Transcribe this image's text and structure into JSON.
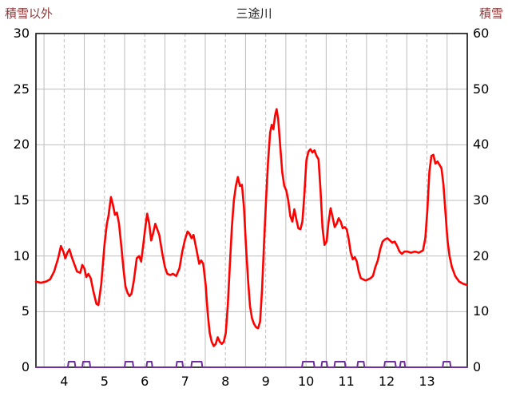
{
  "chart_data": {
    "type": "line",
    "title": "三途川",
    "legend": "none",
    "grid": true,
    "background": "#ffffff",
    "x_axis": {
      "min": 3.3,
      "max": 14.0,
      "tick_positions": [
        4,
        5,
        6,
        7,
        8,
        9,
        10,
        11,
        12,
        13
      ],
      "tick_labels": [
        "4",
        "5",
        "6",
        "7",
        "8",
        "9",
        "10",
        "11",
        "12",
        "13"
      ],
      "gridline_step": 0.5
    },
    "left_axis": {
      "title": "積雪以外",
      "min": 0,
      "max": 30,
      "ticks": [
        0,
        5,
        10,
        15,
        20,
        25,
        30
      ]
    },
    "right_axis": {
      "title": "積雪",
      "min": 0,
      "max": 60,
      "ticks": [
        0,
        10,
        20,
        30,
        40,
        50,
        60
      ]
    },
    "colors": {
      "grid": "#bdbdbd",
      "border": "#000000",
      "red_line": "#ff0000",
      "purple_line": "#7030a0",
      "axis_title_text": "#8b3a3a",
      "tick_text": "#000000"
    },
    "series": [
      {
        "name": "積雪以外",
        "slug": "other-than-snow",
        "axis": "left",
        "color": "#ff0000",
        "stroke_width": 2.6,
        "points": [
          [
            3.3,
            7.7
          ],
          [
            3.42,
            7.6
          ],
          [
            3.55,
            7.7
          ],
          [
            3.65,
            7.9
          ],
          [
            3.75,
            8.6
          ],
          [
            3.85,
            9.8
          ],
          [
            3.92,
            10.9
          ],
          [
            3.98,
            10.4
          ],
          [
            4.03,
            9.8
          ],
          [
            4.08,
            10.3
          ],
          [
            4.13,
            10.6
          ],
          [
            4.18,
            10.0
          ],
          [
            4.25,
            9.3
          ],
          [
            4.32,
            8.6
          ],
          [
            4.4,
            8.5
          ],
          [
            4.45,
            9.2
          ],
          [
            4.5,
            8.9
          ],
          [
            4.55,
            8.1
          ],
          [
            4.6,
            8.4
          ],
          [
            4.66,
            8.0
          ],
          [
            4.72,
            6.9
          ],
          [
            4.8,
            5.7
          ],
          [
            4.85,
            5.6
          ],
          [
            4.92,
            7.5
          ],
          [
            5.0,
            11.0
          ],
          [
            5.06,
            12.9
          ],
          [
            5.1,
            13.6
          ],
          [
            5.16,
            15.3
          ],
          [
            5.21,
            14.6
          ],
          [
            5.26,
            13.7
          ],
          [
            5.31,
            13.9
          ],
          [
            5.36,
            12.9
          ],
          [
            5.42,
            10.8
          ],
          [
            5.47,
            8.9
          ],
          [
            5.52,
            7.3
          ],
          [
            5.57,
            6.7
          ],
          [
            5.62,
            6.4
          ],
          [
            5.67,
            6.6
          ],
          [
            5.73,
            7.8
          ],
          [
            5.8,
            9.8
          ],
          [
            5.86,
            10.0
          ],
          [
            5.91,
            9.5
          ],
          [
            5.96,
            10.9
          ],
          [
            6.01,
            12.5
          ],
          [
            6.06,
            13.8
          ],
          [
            6.11,
            12.9
          ],
          [
            6.16,
            11.4
          ],
          [
            6.21,
            12.1
          ],
          [
            6.26,
            12.9
          ],
          [
            6.31,
            12.4
          ],
          [
            6.36,
            11.9
          ],
          [
            6.43,
            10.3
          ],
          [
            6.5,
            9.0
          ],
          [
            6.56,
            8.4
          ],
          [
            6.63,
            8.3
          ],
          [
            6.7,
            8.4
          ],
          [
            6.78,
            8.2
          ],
          [
            6.86,
            8.9
          ],
          [
            6.93,
            10.4
          ],
          [
            7.0,
            11.5
          ],
          [
            7.06,
            12.2
          ],
          [
            7.11,
            12.0
          ],
          [
            7.16,
            11.6
          ],
          [
            7.21,
            11.9
          ],
          [
            7.28,
            10.6
          ],
          [
            7.35,
            9.3
          ],
          [
            7.4,
            9.6
          ],
          [
            7.45,
            9.3
          ],
          [
            7.51,
            7.4
          ],
          [
            7.56,
            4.9
          ],
          [
            7.61,
            3.1
          ],
          [
            7.66,
            2.3
          ],
          [
            7.71,
            1.9
          ],
          [
            7.76,
            2.1
          ],
          [
            7.81,
            2.7
          ],
          [
            7.86,
            2.3
          ],
          [
            7.91,
            2.1
          ],
          [
            7.96,
            2.3
          ],
          [
            8.01,
            3.1
          ],
          [
            8.06,
            5.6
          ],
          [
            8.11,
            9.1
          ],
          [
            8.16,
            12.6
          ],
          [
            8.21,
            15.0
          ],
          [
            8.26,
            16.3
          ],
          [
            8.31,
            17.1
          ],
          [
            8.36,
            16.3
          ],
          [
            8.41,
            16.4
          ],
          [
            8.46,
            14.4
          ],
          [
            8.51,
            11.0
          ],
          [
            8.56,
            7.9
          ],
          [
            8.61,
            5.5
          ],
          [
            8.66,
            4.4
          ],
          [
            8.71,
            3.9
          ],
          [
            8.76,
            3.6
          ],
          [
            8.81,
            3.5
          ],
          [
            8.86,
            4.1
          ],
          [
            8.91,
            7.0
          ],
          [
            8.96,
            11.2
          ],
          [
            9.01,
            15.2
          ],
          [
            9.06,
            18.6
          ],
          [
            9.11,
            21.1
          ],
          [
            9.15,
            21.8
          ],
          [
            9.19,
            21.4
          ],
          [
            9.23,
            22.6
          ],
          [
            9.27,
            23.2
          ],
          [
            9.31,
            22.3
          ],
          [
            9.36,
            19.9
          ],
          [
            9.41,
            17.5
          ],
          [
            9.46,
            16.3
          ],
          [
            9.51,
            15.9
          ],
          [
            9.56,
            15.0
          ],
          [
            9.61,
            13.6
          ],
          [
            9.66,
            13.1
          ],
          [
            9.71,
            14.2
          ],
          [
            9.76,
            13.3
          ],
          [
            9.81,
            12.5
          ],
          [
            9.86,
            12.4
          ],
          [
            9.91,
            13.1
          ],
          [
            9.96,
            15.6
          ],
          [
            10.01,
            18.6
          ],
          [
            10.06,
            19.4
          ],
          [
            10.11,
            19.6
          ],
          [
            10.16,
            19.3
          ],
          [
            10.21,
            19.5
          ],
          [
            10.26,
            19.0
          ],
          [
            10.31,
            18.7
          ],
          [
            10.36,
            15.9
          ],
          [
            10.41,
            12.5
          ],
          [
            10.46,
            11.0
          ],
          [
            10.51,
            11.3
          ],
          [
            10.56,
            13.1
          ],
          [
            10.61,
            14.3
          ],
          [
            10.66,
            13.5
          ],
          [
            10.71,
            12.6
          ],
          [
            10.76,
            12.9
          ],
          [
            10.81,
            13.4
          ],
          [
            10.86,
            13.1
          ],
          [
            10.91,
            12.5
          ],
          [
            10.96,
            12.6
          ],
          [
            11.01,
            12.4
          ],
          [
            11.06,
            11.5
          ],
          [
            11.11,
            10.3
          ],
          [
            11.16,
            9.7
          ],
          [
            11.21,
            9.9
          ],
          [
            11.26,
            9.5
          ],
          [
            11.31,
            8.6
          ],
          [
            11.36,
            8.0
          ],
          [
            11.42,
            7.9
          ],
          [
            11.48,
            7.8
          ],
          [
            11.54,
            7.9
          ],
          [
            11.6,
            8.0
          ],
          [
            11.66,
            8.2
          ],
          [
            11.72,
            9.0
          ],
          [
            11.78,
            9.6
          ],
          [
            11.84,
            10.6
          ],
          [
            11.9,
            11.3
          ],
          [
            11.96,
            11.5
          ],
          [
            12.02,
            11.6
          ],
          [
            12.08,
            11.4
          ],
          [
            12.14,
            11.2
          ],
          [
            12.2,
            11.3
          ],
          [
            12.26,
            10.9
          ],
          [
            12.32,
            10.4
          ],
          [
            12.38,
            10.2
          ],
          [
            12.44,
            10.4
          ],
          [
            12.52,
            10.4
          ],
          [
            12.6,
            10.3
          ],
          [
            12.7,
            10.4
          ],
          [
            12.8,
            10.3
          ],
          [
            12.9,
            10.5
          ],
          [
            12.96,
            11.6
          ],
          [
            13.01,
            14.1
          ],
          [
            13.06,
            17.6
          ],
          [
            13.11,
            19.0
          ],
          [
            13.16,
            19.1
          ],
          [
            13.21,
            18.3
          ],
          [
            13.26,
            18.5
          ],
          [
            13.31,
            18.2
          ],
          [
            13.36,
            17.9
          ],
          [
            13.41,
            16.4
          ],
          [
            13.46,
            13.9
          ],
          [
            13.51,
            11.4
          ],
          [
            13.56,
            10.0
          ],
          [
            13.62,
            9.0
          ],
          [
            13.7,
            8.2
          ],
          [
            13.8,
            7.7
          ],
          [
            13.9,
            7.5
          ],
          [
            13.99,
            7.4
          ]
        ]
      },
      {
        "name": "積雪",
        "slug": "snow-depth",
        "axis": "right",
        "color": "#7030a0",
        "stroke_width": 2.0,
        "points": [
          [
            3.3,
            0
          ],
          [
            4.09,
            0
          ],
          [
            4.11,
            1
          ],
          [
            4.26,
            1
          ],
          [
            4.28,
            0
          ],
          [
            4.45,
            0
          ],
          [
            4.47,
            1
          ],
          [
            4.63,
            1
          ],
          [
            4.65,
            0
          ],
          [
            5.5,
            0
          ],
          [
            5.52,
            1
          ],
          [
            5.7,
            1
          ],
          [
            5.72,
            0
          ],
          [
            6.04,
            0
          ],
          [
            6.06,
            1
          ],
          [
            6.17,
            1
          ],
          [
            6.19,
            0
          ],
          [
            6.78,
            0
          ],
          [
            6.8,
            1
          ],
          [
            6.93,
            1
          ],
          [
            6.95,
            0
          ],
          [
            7.15,
            0
          ],
          [
            7.17,
            1
          ],
          [
            7.41,
            1
          ],
          [
            7.43,
            0
          ],
          [
            9.9,
            0
          ],
          [
            9.92,
            1
          ],
          [
            10.19,
            1
          ],
          [
            10.21,
            0
          ],
          [
            10.38,
            0
          ],
          [
            10.4,
            1
          ],
          [
            10.51,
            1
          ],
          [
            10.53,
            0
          ],
          [
            10.7,
            0
          ],
          [
            10.72,
            1
          ],
          [
            10.96,
            1
          ],
          [
            10.98,
            0
          ],
          [
            11.27,
            0
          ],
          [
            11.29,
            1
          ],
          [
            11.43,
            1
          ],
          [
            11.45,
            0
          ],
          [
            11.94,
            0
          ],
          [
            11.96,
            1
          ],
          [
            12.21,
            1
          ],
          [
            12.23,
            0
          ],
          [
            12.33,
            0
          ],
          [
            12.35,
            1
          ],
          [
            12.44,
            1
          ],
          [
            12.46,
            0
          ],
          [
            13.39,
            0
          ],
          [
            13.41,
            1
          ],
          [
            13.57,
            1
          ],
          [
            13.59,
            0
          ],
          [
            13.99,
            0
          ]
        ]
      }
    ]
  }
}
